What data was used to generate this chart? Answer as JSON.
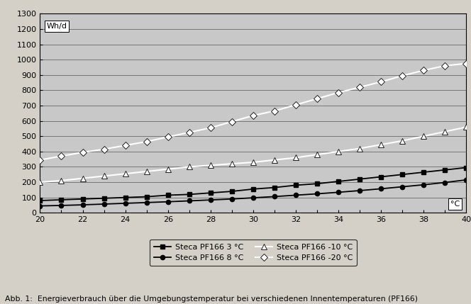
{
  "x": [
    20,
    21,
    22,
    23,
    24,
    25,
    26,
    27,
    28,
    29,
    30,
    31,
    32,
    33,
    34,
    35,
    36,
    37,
    38,
    39,
    40
  ],
  "series_3C": [
    80,
    85,
    90,
    95,
    100,
    105,
    115,
    120,
    130,
    140,
    155,
    165,
    180,
    190,
    205,
    220,
    235,
    250,
    265,
    280,
    295
  ],
  "series_8C": [
    45,
    48,
    52,
    57,
    62,
    67,
    72,
    78,
    84,
    90,
    98,
    106,
    115,
    124,
    134,
    145,
    157,
    170,
    183,
    198,
    215
  ],
  "series_m10C": [
    200,
    210,
    225,
    240,
    255,
    270,
    285,
    300,
    310,
    320,
    330,
    345,
    360,
    380,
    400,
    420,
    445,
    470,
    500,
    530,
    560
  ],
  "series_m20C": [
    345,
    370,
    395,
    415,
    440,
    465,
    495,
    525,
    555,
    595,
    635,
    665,
    705,
    745,
    785,
    820,
    855,
    895,
    930,
    960,
    975
  ],
  "color_dark": "#000000",
  "color_white": "#ffffff",
  "fig_bg": "#d4d0c8",
  "plot_bg": "#c8c8c8",
  "ylabel": "Wh/d",
  "xlabel_unit": "°C",
  "ylim": [
    0,
    1300
  ],
  "xlim": [
    20,
    40
  ],
  "yticks": [
    0,
    100,
    200,
    300,
    400,
    500,
    600,
    700,
    800,
    900,
    1000,
    1100,
    1200,
    1300
  ],
  "xticks": [
    20,
    21,
    22,
    23,
    24,
    25,
    26,
    27,
    28,
    29,
    30,
    31,
    32,
    33,
    34,
    35,
    36,
    37,
    38,
    39,
    40
  ],
  "xtick_labels": [
    "20",
    "",
    "22",
    "",
    "24",
    "",
    "26",
    "",
    "28",
    "",
    "30",
    "",
    "32",
    "",
    "34",
    "",
    "36",
    "",
    "38",
    "",
    "40"
  ],
  "legend_labels": [
    "Steca PF166 3 °C",
    "Steca PF166 8 °C",
    "Steca PF166 -10 °C",
    "Steca PF166 -20 °C"
  ],
  "caption": "Abb. 1:  Energieverbrauch über die Umgebungstemperatur bei verschiedenen Innentemperaturen (PF166)"
}
